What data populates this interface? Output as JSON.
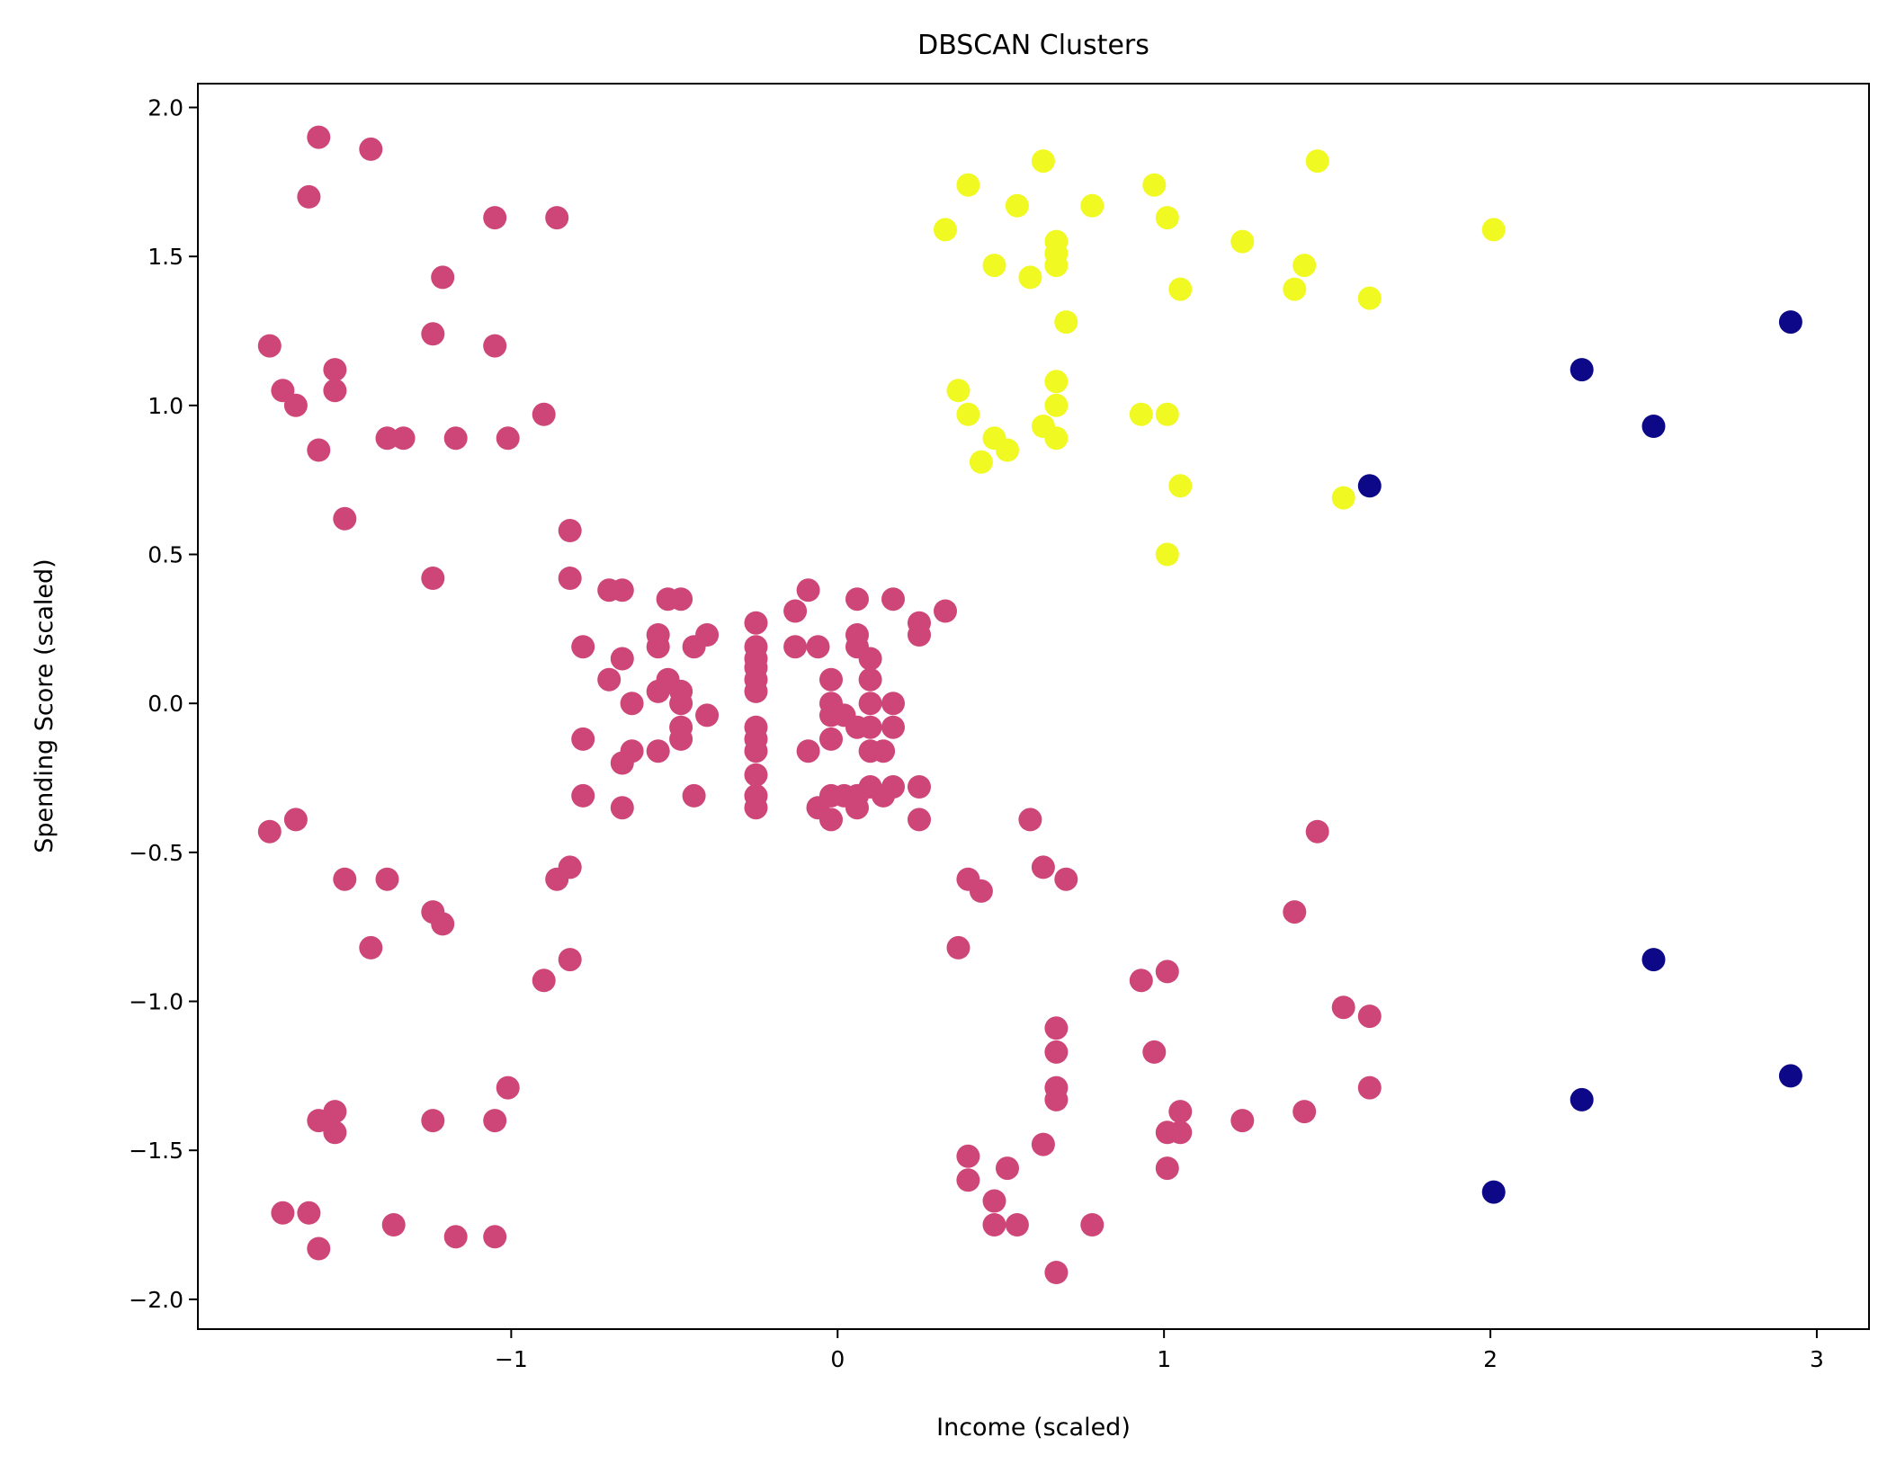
{
  "chart_data": {
    "type": "scatter",
    "title": "DBSCAN Clusters",
    "xlabel": "Income (scaled)",
    "ylabel": "Spending Score (scaled)",
    "xlim": [
      -1.96,
      3.16
    ],
    "ylim": [
      -2.1,
      2.08
    ],
    "xticks": [
      -1,
      0,
      1,
      2,
      3
    ],
    "xtick_labels": [
      "−1",
      "0",
      "1",
      "2",
      "3"
    ],
    "yticks": [
      -2.0,
      -1.5,
      -1.0,
      -0.5,
      0.0,
      0.5,
      1.0,
      1.5,
      2.0
    ],
    "ytick_labels": [
      "−2.0",
      "−1.5",
      "−1.0",
      "−0.5",
      "0.0",
      "0.5",
      "1.0",
      "1.5",
      "2.0"
    ],
    "grid": false,
    "legend": "none",
    "series": [
      {
        "color": "#ce4678",
        "points": [
          [
            -1.59,
            1.9
          ],
          [
            -1.43,
            1.86
          ],
          [
            -1.62,
            1.7
          ],
          [
            -1.05,
            1.63
          ],
          [
            -0.86,
            1.63
          ],
          [
            -1.21,
            1.43
          ],
          [
            -1.24,
            1.24
          ],
          [
            -1.74,
            1.2
          ],
          [
            -1.54,
            1.12
          ],
          [
            -1.05,
            1.2
          ],
          [
            -1.7,
            1.05
          ],
          [
            -1.66,
            1.0
          ],
          [
            -1.54,
            1.05
          ],
          [
            -1.38,
            0.89
          ],
          [
            -1.33,
            0.89
          ],
          [
            -1.17,
            0.89
          ],
          [
            -1.01,
            0.89
          ],
          [
            -0.9,
            0.97
          ],
          [
            -1.59,
            0.85
          ],
          [
            -1.51,
            0.62
          ],
          [
            -1.24,
            0.42
          ],
          [
            -0.82,
            0.58
          ],
          [
            -0.82,
            0.42
          ],
          [
            -0.7,
            0.38
          ],
          [
            -0.66,
            0.38
          ],
          [
            -0.78,
            0.19
          ],
          [
            -0.66,
            0.15
          ],
          [
            -0.7,
            0.08
          ],
          [
            -0.63,
            0.0
          ],
          [
            -0.78,
            -0.12
          ],
          [
            -0.78,
            -0.31
          ],
          [
            -0.66,
            -0.2
          ],
          [
            -0.63,
            -0.16
          ],
          [
            -0.66,
            -0.35
          ],
          [
            -0.55,
            0.23
          ],
          [
            -0.55,
            0.19
          ],
          [
            -0.52,
            0.35
          ],
          [
            -0.48,
            0.35
          ],
          [
            -0.52,
            0.08
          ],
          [
            -0.55,
            0.04
          ],
          [
            -0.48,
            0.04
          ],
          [
            -0.48,
            0.0
          ],
          [
            -0.48,
            -0.08
          ],
          [
            -0.48,
            -0.12
          ],
          [
            -0.55,
            -0.16
          ],
          [
            -0.44,
            0.19
          ],
          [
            -0.4,
            0.23
          ],
          [
            -0.4,
            -0.04
          ],
          [
            -0.44,
            -0.31
          ],
          [
            -0.25,
            0.27
          ],
          [
            -0.25,
            0.19
          ],
          [
            -0.25,
            0.15
          ],
          [
            -0.25,
            0.12
          ],
          [
            -0.25,
            0.08
          ],
          [
            -0.25,
            0.04
          ],
          [
            -0.25,
            -0.08
          ],
          [
            -0.25,
            -0.12
          ],
          [
            -0.25,
            -0.16
          ],
          [
            -0.25,
            -0.24
          ],
          [
            -0.25,
            -0.31
          ],
          [
            -0.25,
            -0.35
          ],
          [
            -0.13,
            0.31
          ],
          [
            -0.09,
            0.38
          ],
          [
            -0.13,
            0.19
          ],
          [
            -0.06,
            0.19
          ],
          [
            -0.09,
            -0.16
          ],
          [
            -0.06,
            -0.35
          ],
          [
            -0.02,
            -0.31
          ],
          [
            0.02,
            -0.31
          ],
          [
            -0.02,
            -0.39
          ],
          [
            -0.02,
            0.08
          ],
          [
            -0.02,
            0.0
          ],
          [
            -0.02,
            -0.04
          ],
          [
            0.02,
            -0.04
          ],
          [
            0.06,
            -0.08
          ],
          [
            -0.02,
            -0.12
          ],
          [
            0.06,
            0.35
          ],
          [
            0.06,
            0.23
          ],
          [
            0.06,
            0.19
          ],
          [
            0.1,
            0.15
          ],
          [
            0.1,
            0.08
          ],
          [
            0.1,
            0.0
          ],
          [
            0.1,
            -0.08
          ],
          [
            0.1,
            -0.16
          ],
          [
            0.14,
            -0.16
          ],
          [
            0.06,
            -0.31
          ],
          [
            0.06,
            -0.35
          ],
          [
            0.1,
            -0.28
          ],
          [
            0.14,
            -0.31
          ],
          [
            0.17,
            -0.28
          ],
          [
            0.17,
            0.0
          ],
          [
            0.17,
            -0.08
          ],
          [
            0.17,
            0.35
          ],
          [
            0.25,
            0.27
          ],
          [
            0.25,
            0.23
          ],
          [
            0.33,
            0.31
          ],
          [
            0.25,
            -0.28
          ],
          [
            0.25,
            -0.39
          ],
          [
            -1.74,
            -0.43
          ],
          [
            -1.66,
            -0.39
          ],
          [
            -1.51,
            -0.59
          ],
          [
            -1.38,
            -0.59
          ],
          [
            -1.43,
            -0.82
          ],
          [
            -1.24,
            -0.7
          ],
          [
            -1.21,
            -0.74
          ],
          [
            -0.86,
            -0.59
          ],
          [
            -0.82,
            -0.55
          ],
          [
            -0.82,
            -0.86
          ],
          [
            -0.9,
            -0.93
          ],
          [
            -1.05,
            -1.4
          ],
          [
            -1.01,
            -1.29
          ],
          [
            -1.24,
            -1.4
          ],
          [
            -1.54,
            -1.37
          ],
          [
            -1.59,
            -1.4
          ],
          [
            -1.54,
            -1.44
          ],
          [
            -1.7,
            -1.71
          ],
          [
            -1.62,
            -1.71
          ],
          [
            -1.59,
            -1.83
          ],
          [
            -1.36,
            -1.75
          ],
          [
            -1.17,
            -1.79
          ],
          [
            -1.05,
            -1.79
          ],
          [
            0.37,
            -0.82
          ],
          [
            0.4,
            -0.59
          ],
          [
            0.44,
            -0.63
          ],
          [
            0.59,
            -0.39
          ],
          [
            0.63,
            -0.55
          ],
          [
            0.7,
            -0.59
          ],
          [
            0.67,
            -1.09
          ],
          [
            0.67,
            -1.17
          ],
          [
            0.67,
            -1.29
          ],
          [
            0.67,
            -1.33
          ],
          [
            0.63,
            -1.48
          ],
          [
            0.67,
            -1.91
          ],
          [
            0.4,
            -1.52
          ],
          [
            0.4,
            -1.6
          ],
          [
            0.52,
            -1.56
          ],
          [
            0.48,
            -1.67
          ],
          [
            0.48,
            -1.75
          ],
          [
            0.55,
            -1.75
          ],
          [
            0.78,
            -1.75
          ],
          [
            0.93,
            -0.93
          ],
          [
            1.01,
            -0.9
          ],
          [
            0.97,
            -1.17
          ],
          [
            1.05,
            -1.37
          ],
          [
            1.01,
            -1.44
          ],
          [
            1.05,
            -1.44
          ],
          [
            1.01,
            -1.56
          ],
          [
            1.24,
            -1.4
          ],
          [
            1.43,
            -1.37
          ],
          [
            1.47,
            -0.43
          ],
          [
            1.4,
            -0.7
          ],
          [
            1.55,
            -1.02
          ],
          [
            1.63,
            -1.05
          ],
          [
            1.63,
            -1.29
          ]
        ]
      },
      {
        "color": "#f0f921",
        "points": [
          [
            0.33,
            1.59
          ],
          [
            0.4,
            1.74
          ],
          [
            0.48,
            1.47
          ],
          [
            0.55,
            1.67
          ],
          [
            0.59,
            1.43
          ],
          [
            0.63,
            1.82
          ],
          [
            0.67,
            1.55
          ],
          [
            0.67,
            1.51
          ],
          [
            0.67,
            1.47
          ],
          [
            0.7,
            1.28
          ],
          [
            0.78,
            1.67
          ],
          [
            0.97,
            1.74
          ],
          [
            1.01,
            1.63
          ],
          [
            1.05,
            1.39
          ],
          [
            1.24,
            1.55
          ],
          [
            1.4,
            1.39
          ],
          [
            1.43,
            1.47
          ],
          [
            1.47,
            1.82
          ],
          [
            1.63,
            1.36
          ],
          [
            2.01,
            1.59
          ],
          [
            0.37,
            1.05
          ],
          [
            0.4,
            0.97
          ],
          [
            0.44,
            0.81
          ],
          [
            0.48,
            0.89
          ],
          [
            0.52,
            0.85
          ],
          [
            0.63,
            0.93
          ],
          [
            0.67,
            1.08
          ],
          [
            0.67,
            1.0
          ],
          [
            0.67,
            0.89
          ],
          [
            0.93,
            0.97
          ],
          [
            1.01,
            0.97
          ],
          [
            1.05,
            0.73
          ],
          [
            1.01,
            0.5
          ],
          [
            1.55,
            0.69
          ]
        ]
      },
      {
        "color": "#0d0887",
        "points": [
          [
            1.63,
            0.73
          ],
          [
            2.28,
            1.12
          ],
          [
            2.5,
            0.93
          ],
          [
            2.92,
            1.28
          ],
          [
            2.5,
            -0.86
          ],
          [
            2.28,
            -1.33
          ],
          [
            2.92,
            -1.25
          ],
          [
            2.01,
            -1.64
          ]
        ]
      }
    ]
  }
}
